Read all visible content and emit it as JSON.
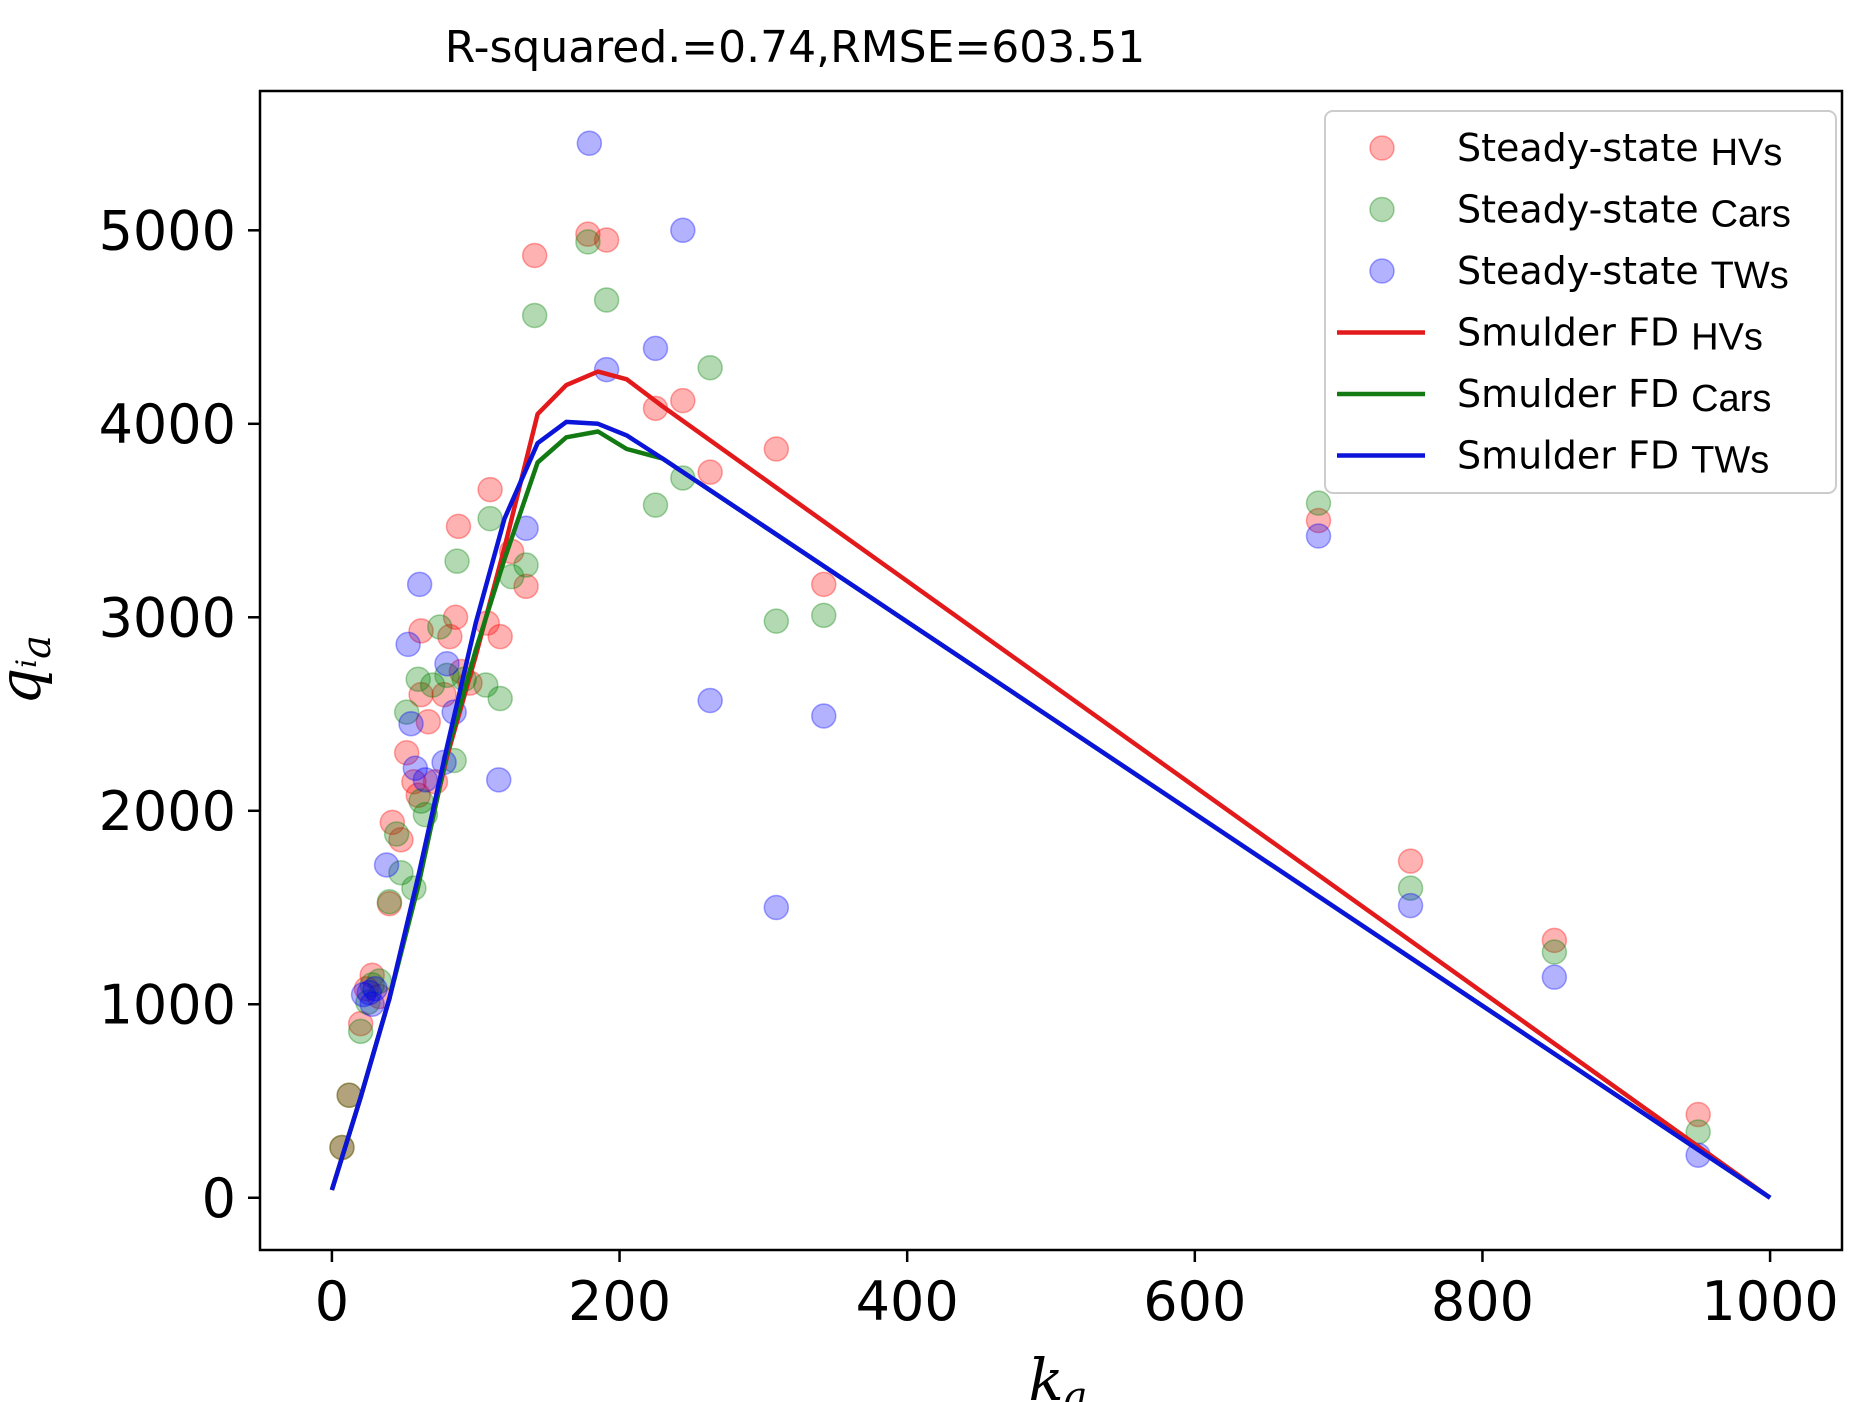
{
  "chart_data": {
    "type": "scatter",
    "title": "R-squared.=0.74,RMSE=603.51",
    "xlabel": {
      "base": "k",
      "sub": "a"
    },
    "ylabel": {
      "base": "q",
      "sub1": "i",
      "sub2": "a"
    },
    "xlim": [
      -50,
      1050
    ],
    "ylim": [
      -270,
      5720
    ],
    "xticks": [
      0,
      200,
      400,
      600,
      800,
      1000
    ],
    "yticks": [
      0,
      1000,
      2000,
      3000,
      4000,
      5000
    ],
    "xtick_labels": [
      "0",
      "200",
      "400",
      "600",
      "800",
      "1000"
    ],
    "ytick_labels": [
      "0",
      "1000",
      "2000",
      "3000",
      "4000",
      "5000"
    ],
    "grid": false,
    "legend_position": "top-right",
    "series": [
      {
        "name": "Steady-state HVs",
        "label_main": "Steady-state",
        "label_suffix": "HVs",
        "kind": "scatter",
        "color": "#ff0000",
        "opacity": 0.3,
        "points": [
          [
            7,
            260
          ],
          [
            12,
            530
          ],
          [
            20,
            900
          ],
          [
            24,
            1080
          ],
          [
            28,
            1150
          ],
          [
            33,
            1040
          ],
          [
            40,
            1520
          ],
          [
            42,
            1940
          ],
          [
            48,
            1850
          ],
          [
            52,
            2300
          ],
          [
            57,
            2150
          ],
          [
            60,
            2080
          ],
          [
            62,
            2600
          ],
          [
            62,
            2930
          ],
          [
            67,
            2460
          ],
          [
            72,
            2150
          ],
          [
            78,
            2600
          ],
          [
            82,
            2900
          ],
          [
            86,
            3000
          ],
          [
            88,
            3470
          ],
          [
            90,
            2720
          ],
          [
            96,
            2660
          ],
          [
            108,
            2970
          ],
          [
            110,
            3660
          ],
          [
            117,
            2900
          ],
          [
            125,
            3340
          ],
          [
            135,
            3160
          ],
          [
            141,
            4870
          ],
          [
            178,
            4980
          ],
          [
            191,
            4950
          ],
          [
            225,
            4080
          ],
          [
            244,
            4120
          ],
          [
            263,
            3750
          ],
          [
            309,
            3870
          ],
          [
            342,
            3170
          ],
          [
            686,
            3500
          ],
          [
            750,
            1740
          ],
          [
            850,
            1330
          ],
          [
            950,
            430
          ]
        ]
      },
      {
        "name": "Steady-state Cars",
        "label_main": "Steady-state",
        "label_suffix": "Cars",
        "kind": "scatter",
        "color": "#008000",
        "opacity": 0.3,
        "points": [
          [
            7,
            260
          ],
          [
            12,
            530
          ],
          [
            20,
            860
          ],
          [
            25,
            1010
          ],
          [
            28,
            1100
          ],
          [
            33,
            1120
          ],
          [
            40,
            1530
          ],
          [
            45,
            1880
          ],
          [
            48,
            1680
          ],
          [
            52,
            2510
          ],
          [
            57,
            1600
          ],
          [
            60,
            2680
          ],
          [
            62,
            2050
          ],
          [
            65,
            1980
          ],
          [
            70,
            2650
          ],
          [
            75,
            2950
          ],
          [
            80,
            2700
          ],
          [
            85,
            2260
          ],
          [
            87,
            3290
          ],
          [
            92,
            2680
          ],
          [
            107,
            2650
          ],
          [
            110,
            3510
          ],
          [
            117,
            2580
          ],
          [
            125,
            3210
          ],
          [
            135,
            3270
          ],
          [
            141,
            4560
          ],
          [
            178,
            4940
          ],
          [
            191,
            4640
          ],
          [
            225,
            3580
          ],
          [
            244,
            3720
          ],
          [
            263,
            4290
          ],
          [
            309,
            2980
          ],
          [
            342,
            3010
          ],
          [
            686,
            3590
          ],
          [
            750,
            1600
          ],
          [
            850,
            1270
          ],
          [
            950,
            340
          ]
        ]
      },
      {
        "name": "Steady-state TWs",
        "label_main": "Steady-state",
        "label_suffix": "TWs",
        "kind": "scatter",
        "color": "#0000ff",
        "opacity": 0.3,
        "points": [
          [
            22,
            1050
          ],
          [
            26,
            1060
          ],
          [
            28,
            1000
          ],
          [
            30,
            1080
          ],
          [
            38,
            1720
          ],
          [
            53,
            2860
          ],
          [
            55,
            2450
          ],
          [
            58,
            2220
          ],
          [
            61,
            3170
          ],
          [
            65,
            2160
          ],
          [
            78,
            2250
          ],
          [
            80,
            2760
          ],
          [
            85,
            2510
          ],
          [
            116,
            2160
          ],
          [
            135,
            3460
          ],
          [
            179,
            5450
          ],
          [
            191,
            4280
          ],
          [
            225,
            4390
          ],
          [
            244,
            5000
          ],
          [
            263,
            2570
          ],
          [
            309,
            1500
          ],
          [
            342,
            2490
          ],
          [
            686,
            3420
          ],
          [
            750,
            1510
          ],
          [
            850,
            1140
          ],
          [
            950,
            220
          ]
        ]
      },
      {
        "name": "Smulder FD HVs",
        "label_main": "Smulder FD",
        "label_suffix": "HVs",
        "kind": "line",
        "color": "#e31a1c",
        "points": [
          [
            0,
            40
          ],
          [
            20,
            520
          ],
          [
            40,
            1030
          ],
          [
            60,
            1650
          ],
          [
            80,
            2280
          ],
          [
            100,
            2800
          ],
          [
            120,
            3360
          ],
          [
            143,
            4050
          ],
          [
            163,
            4200
          ],
          [
            185,
            4270
          ],
          [
            205,
            4230
          ],
          [
            230,
            4090
          ],
          [
            1000,
            0
          ]
        ]
      },
      {
        "name": "Smulder FD Cars",
        "label_main": "Smulder FD",
        "label_suffix": "Cars",
        "kind": "line",
        "color": "#137a13",
        "points": [
          [
            0,
            40
          ],
          [
            20,
            520
          ],
          [
            40,
            1030
          ],
          [
            60,
            1610
          ],
          [
            80,
            2300
          ],
          [
            100,
            2830
          ],
          [
            120,
            3300
          ],
          [
            143,
            3800
          ],
          [
            163,
            3930
          ],
          [
            185,
            3960
          ],
          [
            205,
            3870
          ],
          [
            230,
            3820
          ],
          [
            1000,
            0
          ]
        ]
      },
      {
        "name": "Smulder FD TWs",
        "label_main": "Smulder FD",
        "label_suffix": "TWs",
        "kind": "line",
        "color": "#0b14d9",
        "points": [
          [
            0,
            40
          ],
          [
            20,
            520
          ],
          [
            40,
            1030
          ],
          [
            60,
            1660
          ],
          [
            80,
            2330
          ],
          [
            100,
            2970
          ],
          [
            120,
            3510
          ],
          [
            143,
            3900
          ],
          [
            163,
            4010
          ],
          [
            185,
            4000
          ],
          [
            205,
            3940
          ],
          [
            230,
            3820
          ],
          [
            1000,
            0
          ]
        ]
      }
    ]
  }
}
